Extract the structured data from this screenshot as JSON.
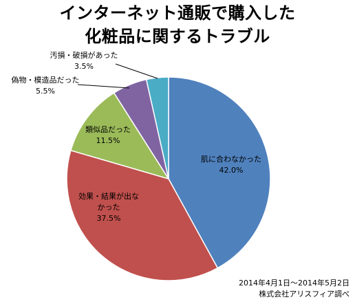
{
  "title_lines": [
    "インターネット通販で購入した",
    "化粧品に関するトラブル"
  ],
  "footer": {
    "period": "2014年4月1日～2014年5月2日",
    "source": "株式会社アリスフィア調べ"
  },
  "chart_data": {
    "type": "pie",
    "title": "インターネット通販で購入した化粧品に関するトラブル",
    "start": "12 o'clock",
    "direction": "clockwise",
    "slices": [
      {
        "label_lines": [
          "肌に合わなかった"
        ],
        "value": 42.0,
        "value_label": "42.0%",
        "color": "#4F81BD"
      },
      {
        "label_lines": [
          "効果・結果が出な",
          "かった"
        ],
        "value": 37.5,
        "value_label": "37.5%",
        "color": "#C0504D"
      },
      {
        "label_lines": [
          "類似品だった"
        ],
        "value": 11.5,
        "value_label": "11.5%",
        "color": "#9BBB59"
      },
      {
        "label_lines": [
          "偽物・模造品だった"
        ],
        "value": 5.5,
        "value_label": "5.5%",
        "color": "#8064A2"
      },
      {
        "label_lines": [
          "汚損・破損があった"
        ],
        "value": 3.5,
        "value_label": "3.5%",
        "color": "#4BACC6"
      }
    ]
  }
}
